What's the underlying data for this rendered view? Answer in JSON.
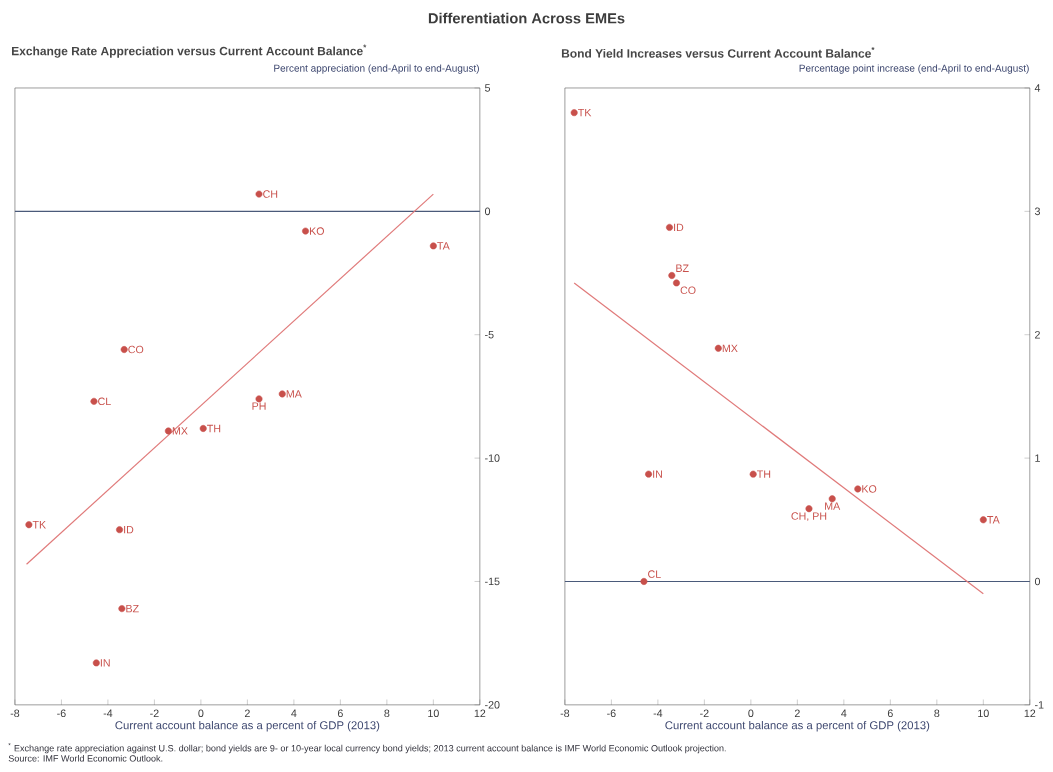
{
  "chart_data": [
    {
      "type": "scatter",
      "title": "Differentiation Across EMEs",
      "subtitle": "Exchange Rate Appreciation versus Current Account Balance$^{*}$",
      "ylabel": "Percent appreciation (end-April to end-August)",
      "xlabel": "Current account balance as a percent of GDP (2013)",
      "series": [
        {
          "type": "scatter",
          "marker": "circle",
          "color": "#c8504b",
          "x": [
            2.5,
            4.5,
            10,
            -3.3,
            -4.6,
            2.5,
            3.5,
            -1.4,
            0.1,
            -7.4,
            -3.5,
            -3.4,
            -4.5
          ],
          "values": [
            0.7,
            -0.8,
            -1.4,
            -5.6,
            -7.7,
            -7.6,
            -7.4,
            -8.9,
            -8.8,
            -12.7,
            -12.9,
            -16.1,
            -18.3
          ]
        },
        {
          "type": "line",
          "color": "#e07a7a",
          "x": [
            -7.5,
            10
          ],
          "values": [
            -14.3,
            0.7
          ]
        }
      ],
      "xlim": [
        -8,
        12
      ],
      "ylim": [
        -20,
        5
      ],
      "xticks": [
        -8,
        -6,
        -4,
        -2,
        0,
        2,
        4,
        6,
        8,
        10,
        12
      ],
      "yticks": [
        -20,
        -15,
        -10,
        -5,
        0,
        5
      ],
      "ref_lines": [
        {
          "axis": "y",
          "value": 0,
          "color": "#4a5a7a"
        }
      ],
      "annotations": [
        {
          "text": "CH",
          "x": 2.5,
          "y": 0.7
        },
        {
          "text": "KO",
          "x": 4.5,
          "y": -0.8
        },
        {
          "text": "TA",
          "x": 10,
          "y": -1.4
        },
        {
          "text": "CO",
          "x": -3.3,
          "y": -5.6
        },
        {
          "text": "CL",
          "x": -4.6,
          "y": -7.7
        },
        {
          "text": "PH",
          "x": 2.5,
          "y": -7.6
        },
        {
          "text": "MA",
          "x": 3.5,
          "y": -7.4
        },
        {
          "text": "MX",
          "x": -1.4,
          "y": -8.9
        },
        {
          "text": "TH",
          "x": 0.1,
          "y": -8.8
        },
        {
          "text": "TK",
          "x": -7.4,
          "y": -12.7
        },
        {
          "text": "ID",
          "x": -3.5,
          "y": -12.9
        },
        {
          "text": "BZ",
          "x": -3.4,
          "y": -16.1
        },
        {
          "text": "IN",
          "x": -4.5,
          "y": -18.3
        },
        "$^{*}$ Exchange rate appreciation against U.S. dollar; bond yields are 9- or 10-year local currency bond yields; 2013 current account balance is IMF World Economic Outlook projection.",
        "Source: IMF World Economic Outlook."
      ]
    },
    {
      "type": "scatter",
      "title": "Bond Yield Increases versus Current Account Balance$^{*}$",
      "ylabel": "Percentage point increase (end-April to end-August)",
      "xlabel": "Current account balance as a percent of GDP (2013)",
      "series": [
        {
          "type": "scatter",
          "marker": "circle",
          "color": "#c8504b",
          "x": [
            -7.6,
            -3.5,
            -3.4,
            -3.2,
            -1.4,
            -4.4,
            0.1,
            4.6,
            3.5,
            2.5,
            10,
            -4.6
          ],
          "values": [
            3.8,
            2.87,
            2.48,
            2.42,
            1.89,
            0.87,
            0.87,
            0.75,
            0.67,
            0.59,
            0.5,
            0.0
          ]
        },
        {
          "type": "line",
          "color": "#e07a7a",
          "x": [
            -7.6,
            10
          ],
          "values": [
            2.42,
            -0.1
          ]
        }
      ],
      "xlim": [
        -8,
        12
      ],
      "ylim": [
        -1,
        4
      ],
      "xticks": [
        -8,
        -6,
        -4,
        -2,
        0,
        2,
        4,
        6,
        8,
        10,
        12
      ],
      "yticks": [
        -1,
        0,
        1,
        2,
        3,
        4
      ],
      "ref_lines": [
        {
          "axis": "y",
          "value": 0,
          "color": "#4a5a7a"
        }
      ],
      "annotations": [
        {
          "text": "TK",
          "x": -7.6,
          "y": 3.8
        },
        {
          "text": "ID",
          "x": -3.5,
          "y": 2.87
        },
        {
          "text": "BZ",
          "x": -3.4,
          "y": 2.48
        },
        {
          "text": "CO",
          "x": -3.2,
          "y": 2.42
        },
        {
          "text": "MX",
          "x": -1.4,
          "y": 1.89
        },
        {
          "text": "IN",
          "x": -4.4,
          "y": 0.87
        },
        {
          "text": "TH",
          "x": 0.1,
          "y": 0.87
        },
        {
          "text": "KO",
          "x": 4.6,
          "y": 0.75
        },
        {
          "text": "MA",
          "x": 3.5,
          "y": 0.67
        },
        {
          "text": "CH, PH",
          "x": 2.5,
          "y": 0.59
        },
        {
          "text": "TA",
          "x": 10,
          "y": 0.5
        },
        {
          "text": "CL",
          "x": -4.6,
          "y": 0.0
        }
      ]
    }
  ]
}
